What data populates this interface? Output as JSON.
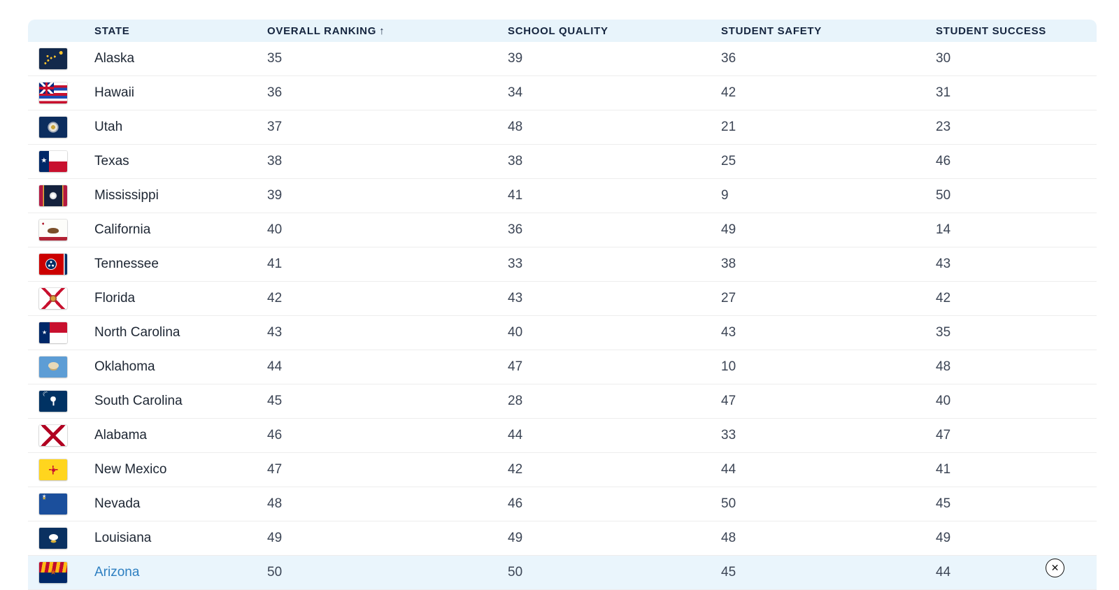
{
  "header": {
    "columns": {
      "state": "STATE",
      "overall": "OVERALL RANKING",
      "quality": "SCHOOL QUALITY",
      "safety": "STUDENT SAFETY",
      "success": "STUDENT SUCCESS"
    },
    "sort_arrow": "↑"
  },
  "table": {
    "rows": [
      {
        "state": "Alaska",
        "flag": "alaska",
        "overall": 35,
        "quality": 39,
        "safety": 36,
        "success": 30,
        "highlighted": false
      },
      {
        "state": "Hawaii",
        "flag": "hawaii",
        "overall": 36,
        "quality": 34,
        "safety": 42,
        "success": 31,
        "highlighted": false
      },
      {
        "state": "Utah",
        "flag": "utah",
        "overall": 37,
        "quality": 48,
        "safety": 21,
        "success": 23,
        "highlighted": false
      },
      {
        "state": "Texas",
        "flag": "texas",
        "overall": 38,
        "quality": 38,
        "safety": 25,
        "success": 46,
        "highlighted": false
      },
      {
        "state": "Mississippi",
        "flag": "mississippi",
        "overall": 39,
        "quality": 41,
        "safety": 9,
        "success": 50,
        "highlighted": false
      },
      {
        "state": "California",
        "flag": "california",
        "overall": 40,
        "quality": 36,
        "safety": 49,
        "success": 14,
        "highlighted": false
      },
      {
        "state": "Tennessee",
        "flag": "tennessee",
        "overall": 41,
        "quality": 33,
        "safety": 38,
        "success": 43,
        "highlighted": false
      },
      {
        "state": "Florida",
        "flag": "florida",
        "overall": 42,
        "quality": 43,
        "safety": 27,
        "success": 42,
        "highlighted": false
      },
      {
        "state": "North Carolina",
        "flag": "north-carolina",
        "overall": 43,
        "quality": 40,
        "safety": 43,
        "success": 35,
        "highlighted": false
      },
      {
        "state": "Oklahoma",
        "flag": "oklahoma",
        "overall": 44,
        "quality": 47,
        "safety": 10,
        "success": 48,
        "highlighted": false
      },
      {
        "state": "South Carolina",
        "flag": "south-carolina",
        "overall": 45,
        "quality": 28,
        "safety": 47,
        "success": 40,
        "highlighted": false
      },
      {
        "state": "Alabama",
        "flag": "alabama",
        "overall": 46,
        "quality": 44,
        "safety": 33,
        "success": 47,
        "highlighted": false
      },
      {
        "state": "New Mexico",
        "flag": "new-mexico",
        "overall": 47,
        "quality": 42,
        "safety": 44,
        "success": 41,
        "highlighted": false
      },
      {
        "state": "Nevada",
        "flag": "nevada",
        "overall": 48,
        "quality": 46,
        "safety": 50,
        "success": 45,
        "highlighted": false
      },
      {
        "state": "Louisiana",
        "flag": "louisiana",
        "overall": 49,
        "quality": 49,
        "safety": 48,
        "success": 49,
        "highlighted": false
      },
      {
        "state": "Arizona",
        "flag": "arizona",
        "overall": 50,
        "quality": 50,
        "safety": 45,
        "success": 44,
        "highlighted": true
      }
    ]
  },
  "close_button": {
    "label": "✕"
  },
  "colors": {
    "header_bg": "#e8f4fb",
    "highlight_bg": "#eaf5fc",
    "link": "#2d7fc1"
  }
}
